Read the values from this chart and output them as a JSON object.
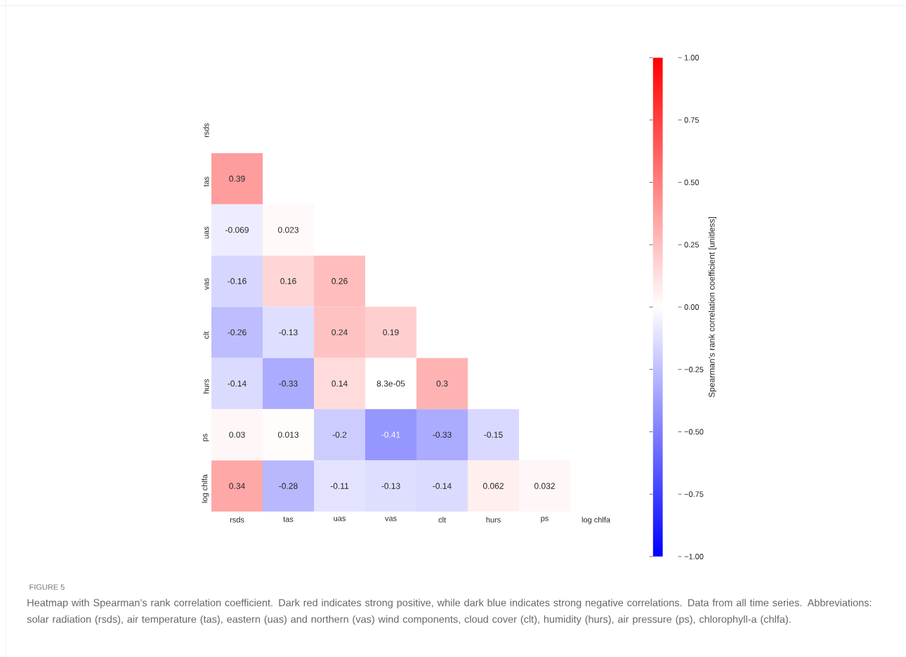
{
  "chart_data": {
    "type": "heatmap",
    "categories": [
      "rsds",
      "tas",
      "uas",
      "vas",
      "clt",
      "hurs",
      "ps",
      "log chlfa"
    ],
    "y_categories": [
      "rsds",
      "tas",
      "uas",
      "vas",
      "clt",
      "hurs",
      "ps",
      "log chlfa"
    ],
    "cells": [
      [
        null,
        null,
        null,
        null,
        null,
        null,
        null,
        null
      ],
      [
        0.39,
        null,
        null,
        null,
        null,
        null,
        null,
        null
      ],
      [
        -0.069,
        0.023,
        null,
        null,
        null,
        null,
        null,
        null
      ],
      [
        -0.16,
        0.16,
        0.26,
        null,
        null,
        null,
        null,
        null
      ],
      [
        -0.26,
        -0.13,
        0.24,
        0.19,
        null,
        null,
        null,
        null
      ],
      [
        -0.14,
        -0.33,
        0.14,
        8.3e-05,
        0.3,
        null,
        null,
        null
      ],
      [
        0.03,
        0.013,
        -0.2,
        -0.41,
        -0.33,
        -0.15,
        null,
        null
      ],
      [
        0.34,
        -0.28,
        -0.11,
        -0.13,
        -0.14,
        0.062,
        0.032,
        null
      ]
    ],
    "cell_labels": [
      [
        null,
        null,
        null,
        null,
        null,
        null,
        null,
        null
      ],
      [
        "0.39",
        null,
        null,
        null,
        null,
        null,
        null,
        null
      ],
      [
        "-0.069",
        "0.023",
        null,
        null,
        null,
        null,
        null,
        null
      ],
      [
        "-0.16",
        "0.16",
        "0.26",
        null,
        null,
        null,
        null,
        null
      ],
      [
        "-0.26",
        "-0.13",
        "0.24",
        "0.19",
        null,
        null,
        null,
        null
      ],
      [
        "-0.14",
        "-0.33",
        "0.14",
        "8.3e-05",
        "0.3",
        null,
        null,
        null
      ],
      [
        "0.03",
        "0.013",
        "-0.2",
        "-0.41",
        "-0.33",
        "-0.15",
        null,
        null
      ],
      [
        "0.34",
        "-0.28",
        "-0.11",
        "-0.13",
        "-0.14",
        "0.062",
        "0.032",
        null
      ]
    ],
    "clim": [
      -1,
      1
    ],
    "cticks": [
      {
        "value": -1,
        "label": "−1.00"
      },
      {
        "value": -0.75,
        "label": "−0.75"
      },
      {
        "value": -0.5,
        "label": "−0.50"
      },
      {
        "value": -0.25,
        "label": "−0.25"
      },
      {
        "value": 0,
        "label": "0.00"
      },
      {
        "value": 0.25,
        "label": "0.25"
      },
      {
        "value": 0.5,
        "label": "0.50"
      },
      {
        "value": 0.75,
        "label": "0.75"
      },
      {
        "value": 1,
        "label": "1.00"
      }
    ],
    "clabel": "Spearman’s rank correlation coefficient [unitless]",
    "annotations": [
      "FIGURE 5",
      "Heatmap with Spearman’s rank correlation coefficient. Dark red indicates strong positive, while dark blue indicates strong negative correlations. Data from all time series. Abbreviations: solar radiation (rsds), air temperature (tas), eastern (uas) and northern (vas) wind components, cloud cover (clt), humidity (hurs), air pressure (ps), chlorophyll-a (chlfa)."
    ]
  }
}
